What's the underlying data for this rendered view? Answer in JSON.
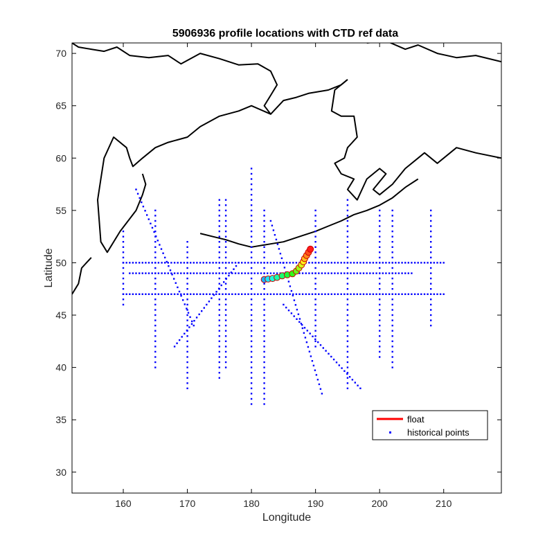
{
  "chart_data": {
    "type": "scatter",
    "title": "5906936 profile locations with CTD ref data",
    "xlabel": "Longitude",
    "ylabel": "Latitude",
    "xlim": [
      152,
      219
    ],
    "ylim": [
      28,
      71
    ],
    "xticks": [
      160,
      170,
      180,
      190,
      200,
      210
    ],
    "yticks": [
      30,
      35,
      40,
      45,
      50,
      55,
      60,
      65,
      70
    ],
    "grid": false,
    "legend": {
      "location": "lower-right",
      "entries": [
        "float",
        "historical points"
      ]
    },
    "colors": {
      "float": "#ff0000",
      "historical": "#0000ff",
      "coastline": "#000000"
    },
    "series": [
      {
        "name": "float",
        "color": "#ff0000",
        "lon": [
          182.0,
          182.6,
          183.3,
          184.0,
          184.8,
          185.6,
          186.4,
          187.0,
          187.4,
          187.8,
          188.1,
          188.3,
          188.6,
          188.9,
          189.2
        ],
        "lat": [
          48.4,
          48.45,
          48.5,
          48.6,
          48.75,
          48.85,
          48.95,
          49.2,
          49.5,
          49.8,
          50.1,
          50.4,
          50.7,
          51.0,
          51.3
        ]
      },
      {
        "name": "historical points",
        "color": "#0000ff",
        "lines": [
          {
            "lon": [
              160,
              210
            ],
            "lat": [
              50,
              50
            ]
          },
          {
            "lon": [
              160,
              210
            ],
            "lat": [
              47,
              47
            ]
          },
          {
            "lon": [
              161,
              205
            ],
            "lat": [
              49,
              49
            ]
          },
          {
            "lon": [
              182,
              182
            ],
            "lat": [
              36.5,
              55
            ]
          },
          {
            "lon": [
              180,
              180
            ],
            "lat": [
              36.5,
              59
            ]
          },
          {
            "lon": [
              195,
              195
            ],
            "lat": [
              38,
              56
            ]
          },
          {
            "lon": [
              200,
              200
            ],
            "lat": [
              41,
              55
            ]
          },
          {
            "lon": [
              202,
              202
            ],
            "lat": [
              40,
              55
            ]
          },
          {
            "lon": [
              208,
              208
            ],
            "lat": [
              44,
              55
            ]
          },
          {
            "lon": [
              165,
              165
            ],
            "lat": [
              40,
              55
            ]
          },
          {
            "lon": [
              170,
              170
            ],
            "lat": [
              38,
              52
            ]
          },
          {
            "lon": [
              175,
              175
            ],
            "lat": [
              39,
              56
            ]
          },
          {
            "lon": [
              160,
              160
            ],
            "lat": [
              46,
              53
            ]
          },
          {
            "lon": [
              185,
              197
            ],
            "lat": [
              46,
              38
            ]
          },
          {
            "lon": [
              183,
              191
            ],
            "lat": [
              54,
              37.5
            ]
          },
          {
            "lon": [
              168,
              178
            ],
            "lat": [
              42,
              50
            ]
          },
          {
            "lon": [
              162,
              171
            ],
            "lat": [
              57,
              44
            ]
          },
          {
            "lon": [
              176,
              176
            ],
            "lat": [
              40,
              56
            ]
          },
          {
            "lon": [
              190,
              190
            ],
            "lat": [
              42,
              55
            ]
          }
        ]
      }
    ],
    "coastlines": [
      {
        "lon": [
          152,
          153,
          155,
          157,
          159,
          161,
          164,
          167,
          169,
          172,
          175,
          178,
          181,
          183,
          184,
          183,
          182,
          183,
          185,
          187,
          189,
          192,
          194,
          195
        ],
        "lat": [
          71,
          70.6,
          70.4,
          70.2,
          70.6,
          69.8,
          69.6,
          69.8,
          69.0,
          70.0,
          69.5,
          68.9,
          69.0,
          68.3,
          67.0,
          66.0,
          65.0,
          64.2,
          65.5,
          65.8,
          66.2,
          66.5,
          67.0,
          67.5
        ]
      },
      {
        "lon": [
          198,
          201,
          204,
          206,
          209,
          212,
          215,
          219
        ],
        "lat": [
          71.0,
          71.2,
          70.4,
          70.8,
          70.0,
          69.6,
          69.8,
          69.2
        ]
      },
      {
        "lon": [
          195,
          193,
          192.5,
          194,
          196,
          196.5,
          195,
          194.5,
          193,
          194,
          196,
          195,
          196.5,
          198,
          200,
          201,
          199,
          200,
          202,
          204,
          206,
          207,
          209,
          210,
          212,
          215,
          219
        ],
        "lat": [
          67.5,
          66.5,
          64.5,
          64.0,
          64.0,
          62.0,
          61.0,
          60.0,
          59.5,
          58.5,
          58.0,
          57.0,
          56.0,
          58.0,
          59.0,
          58.5,
          57.0,
          56.5,
          57.5,
          59.0,
          60.0,
          60.5,
          59.5,
          60.0,
          61.0,
          60.5,
          60.0
        ]
      },
      {
        "lon": [
          183,
          180,
          178,
          175,
          172,
          170,
          167,
          165,
          163,
          161.5,
          161,
          160.5,
          158.5,
          157,
          156.5,
          156,
          156.5,
          157.5,
          159.5,
          162,
          163,
          163.5,
          163
        ],
        "lat": [
          64.2,
          65.0,
          64.5,
          64.0,
          63.0,
          62.0,
          61.5,
          61.0,
          60.0,
          59.2,
          60.0,
          61.0,
          62.0,
          60.0,
          58.0,
          56.0,
          52.0,
          51.0,
          53.0,
          55.0,
          56.5,
          57.5,
          58.5
        ]
      },
      {
        "lon": [
          155,
          153.5,
          153,
          152
        ],
        "lat": [
          50.5,
          49.5,
          48.0,
          47.0
        ]
      },
      {
        "lon": [
          172,
          174,
          176,
          178,
          180,
          183,
          185,
          186,
          188,
          190,
          192,
          194,
          196,
          198,
          200,
          202,
          204,
          206
        ],
        "lat": [
          52.8,
          52.5,
          52.2,
          51.8,
          51.5,
          51.8,
          52.0,
          52.2,
          52.6,
          53.0,
          53.5,
          54.0,
          54.6,
          55.0,
          55.5,
          56.2,
          57.2,
          58.0
        ]
      }
    ]
  }
}
